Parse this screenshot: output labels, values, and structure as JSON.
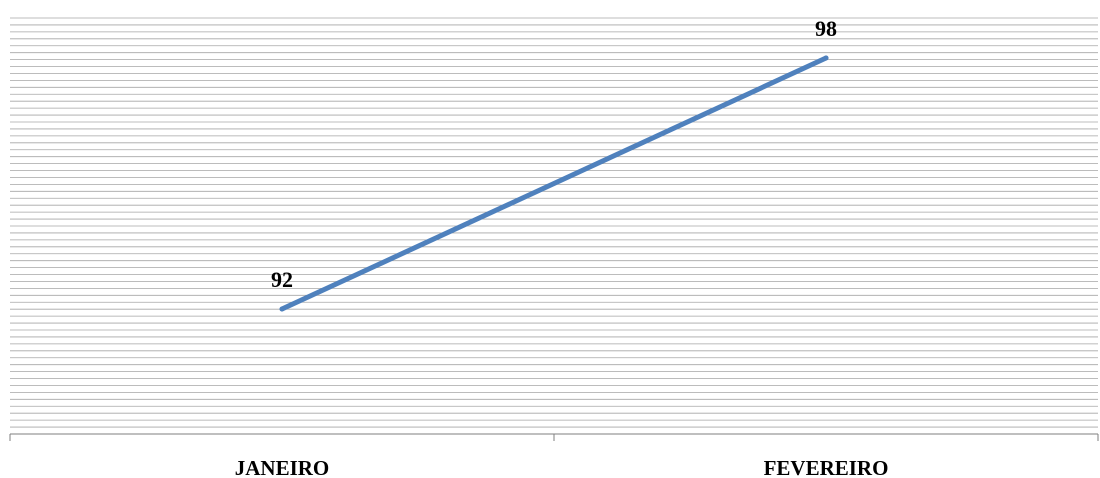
{
  "chart_data": {
    "type": "line",
    "categories": [
      "JANEIRO",
      "FEVEREIRO"
    ],
    "series": [
      {
        "values": [
          92,
          98
        ]
      }
    ],
    "data_labels": [
      "92",
      "98"
    ],
    "ylim": [
      85,
      100
    ],
    "grid": true,
    "legend": "none",
    "colors": {
      "line": "#4f81bd",
      "grid": "#a6a6a6",
      "axis": "#7f7f7f"
    }
  }
}
